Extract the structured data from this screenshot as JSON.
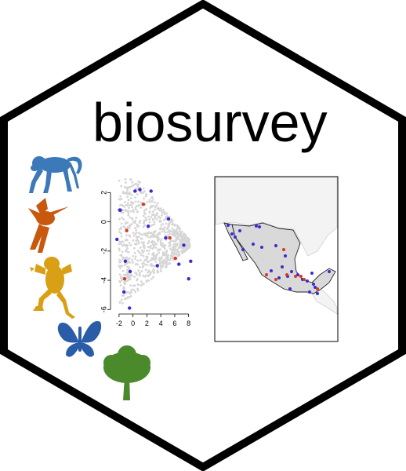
{
  "logo": {
    "title": "biosurvey",
    "colors": {
      "border": "#000000",
      "background": "#ffffff",
      "monkey": "#3b79b8",
      "bird": "#c8580e",
      "frog": "#d9a015",
      "butterfly": "#2a5ca8",
      "tree": "#4a8a2a",
      "points_selected_blue": "#3a2bd1",
      "points_selected_red": "#d7391f",
      "points_cloud": "#d6d6d6",
      "map_land": "#d9d9d9",
      "map_neighbor": "#f2f2f2"
    },
    "icons": [
      "monkey-icon",
      "hummingbird-icon",
      "frog-icon",
      "butterfly-icon",
      "tree-icon"
    ]
  },
  "chart_data": {
    "type": "scatter",
    "title": "",
    "xlabel": "",
    "ylabel": "",
    "xlim": [
      -3,
      9.5
    ],
    "ylim": [
      -6.2,
      3.2
    ],
    "x_ticks": [
      "-2",
      "0",
      "2",
      "4",
      "6",
      "8"
    ],
    "y_ticks": [
      "2",
      "0",
      "-2",
      "-4",
      "-6"
    ],
    "series": [
      {
        "color": "#3a2bd1",
        "points": [
          [
            0.3,
            2.1
          ],
          [
            1.0,
            2.2
          ],
          [
            2.6,
            2.1
          ],
          [
            -1.9,
            0.8
          ],
          [
            -1.8,
            0.8
          ],
          [
            2.2,
            -0.3
          ],
          [
            -2.3,
            -1.2
          ],
          [
            5.1,
            0.2
          ],
          [
            -1.1,
            -2.7
          ],
          [
            -0.4,
            -3.4
          ],
          [
            7.3,
            -1.6
          ],
          [
            6.6,
            -2.9
          ],
          [
            8.3,
            -2.7
          ],
          [
            -1.3,
            -4.8
          ],
          [
            8.0,
            -3.9
          ],
          [
            -0.5,
            -5.9
          ],
          [
            3.5,
            -3.0
          ],
          [
            4.7,
            -1.1
          ]
        ]
      },
      {
        "color": "#d7391f",
        "points": [
          [
            1.5,
            1.2
          ],
          [
            -0.9,
            -0.6
          ],
          [
            5.3,
            -1.1
          ],
          [
            6.1,
            -2.5
          ],
          [
            -1.2,
            -3.9
          ]
        ]
      }
    ]
  },
  "map": {
    "region": "Mexico",
    "points_blue": 26,
    "points_red": 8
  }
}
